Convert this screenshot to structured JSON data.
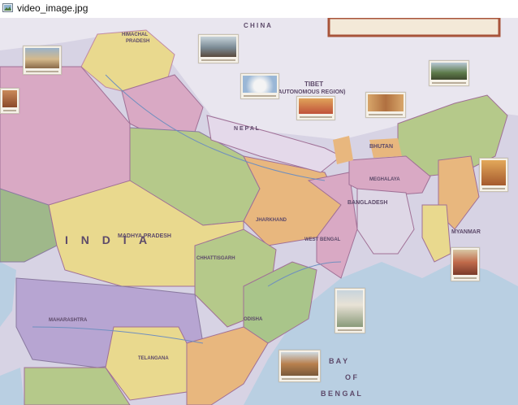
{
  "window": {
    "title": "video_image.jpg",
    "icon": "image-file-icon"
  },
  "map": {
    "country_label": "I N D I A",
    "labels": {
      "china": "C H I N A",
      "tibet": "TIBET",
      "tibet_sub": "(AUTONOMOUS REGION)",
      "nepal": "N E P A L",
      "bhutan": "BHUTAN",
      "bangladesh": "BANGLADESH",
      "myanmar": "MYANMAR",
      "bay_of": "B A Y",
      "of": "O F",
      "bengal": "B E N G A L",
      "himachal": "HIMACHAL",
      "pradesh_h": "PRADESH",
      "madhya_pradesh": "MADHYA PRADESH",
      "chhattisgarh": "CHHATTISGARH",
      "maharashtra": "MAHARASHTRA",
      "odisha": "ODISHA",
      "telangana": "TELANGANA",
      "meghalaya": "MEGHALAYA",
      "west_bengal": "WEST BENGAL",
      "jharkhand": "JHARKHAND"
    },
    "colors": {
      "sea": "#b9cfe2",
      "yellow_state": "#e9d98e",
      "pink_state": "#d9a9c4",
      "purple_state": "#b7a5d2",
      "green_state": "#b5c98a",
      "orange_state": "#e8b77e",
      "frame": "#a8543a"
    }
  }
}
